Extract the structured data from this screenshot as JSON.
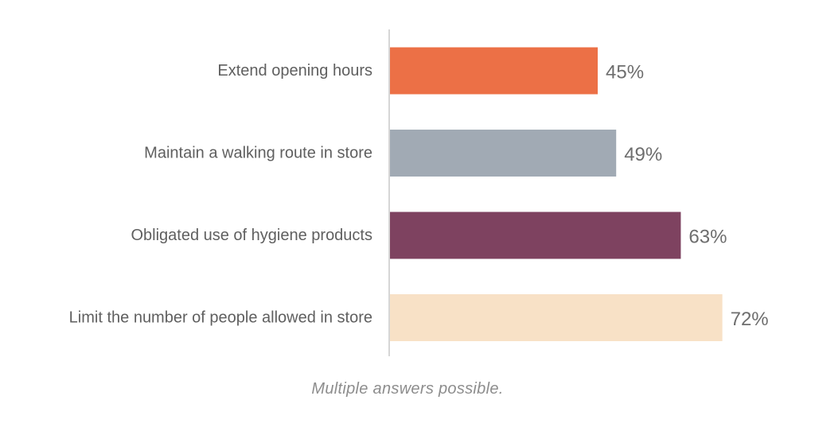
{
  "chart_data": {
    "type": "bar",
    "orientation": "horizontal",
    "categories": [
      "Extend opening hours",
      "Maintain a walking route in store",
      "Obligated use of hygiene products",
      "Limit the number of people allowed in store"
    ],
    "values": [
      45,
      49,
      63,
      72
    ],
    "value_labels": [
      "45%",
      "49%",
      "63%",
      "72%"
    ],
    "colors": [
      "#ec7046",
      "#a1aab4",
      "#7e4260",
      "#f8e1c6"
    ],
    "xlim": [
      0,
      100
    ],
    "unit": "%",
    "grid": false,
    "legend": "none",
    "footnote": "Multiple answers possible."
  },
  "colors": {
    "axis": "#d6d6d6",
    "label_text": "#5f5f5f",
    "value_text": "#6e6e6e",
    "footnote_text": "#8d8d8d"
  }
}
